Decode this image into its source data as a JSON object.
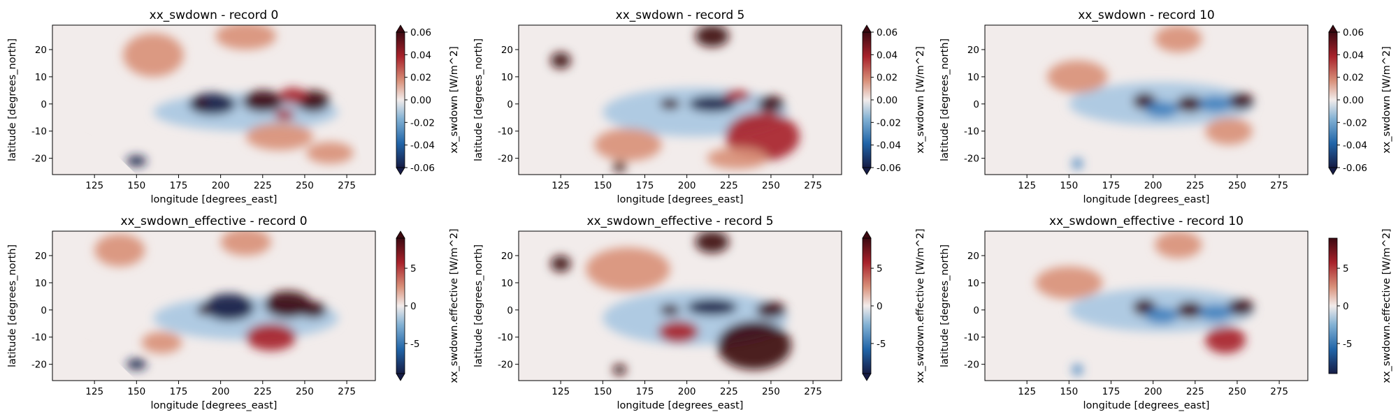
{
  "chart_data": [
    {
      "type": "heatmap",
      "title": "xx_swdown - record 0",
      "xlabel": "longitude [degrees_east]",
      "ylabel": "latitude [degrees_north]",
      "xlim": [
        100,
        292
      ],
      "ylim": [
        -26,
        29
      ],
      "xticks": [
        "125",
        "150",
        "175",
        "200",
        "225",
        "250",
        "275"
      ],
      "yticks": [
        "20",
        "10",
        "0",
        "-10",
        "-20"
      ],
      "colorbar": {
        "label": "xx_swdown [W/m^2]",
        "range": [
          -0.06,
          0.06
        ],
        "ticks": [
          "0.06",
          "0.04",
          "0.02",
          "0.00",
          "-0.02",
          "-0.04",
          "-0.06"
        ],
        "extend": "both"
      },
      "cmap": "balance (blue-white-red)"
    },
    {
      "type": "heatmap",
      "title": "xx_swdown - record 5",
      "xlabel": "longitude [degrees_east]",
      "ylabel": "latitude [degrees_north]",
      "xlim": [
        100,
        292
      ],
      "ylim": [
        -26,
        29
      ],
      "xticks": [
        "125",
        "150",
        "175",
        "200",
        "225",
        "250",
        "275"
      ],
      "yticks": [
        "20",
        "10",
        "0",
        "-10",
        "-20"
      ],
      "colorbar": {
        "label": "xx_swdown [W/m^2]",
        "range": [
          -0.06,
          0.06
        ],
        "ticks": [
          "0.06",
          "0.04",
          "0.02",
          "0.00",
          "-0.02",
          "-0.04",
          "-0.06"
        ],
        "extend": "both"
      },
      "cmap": "balance (blue-white-red)"
    },
    {
      "type": "heatmap",
      "title": "xx_swdown - record 10",
      "xlabel": "longitude [degrees_east]",
      "ylabel": "latitude [degrees_north]",
      "xlim": [
        100,
        292
      ],
      "ylim": [
        -26,
        29
      ],
      "xticks": [
        "125",
        "150",
        "175",
        "200",
        "225",
        "250",
        "275"
      ],
      "yticks": [
        "20",
        "10",
        "0",
        "-10",
        "-20"
      ],
      "colorbar": {
        "label": "xx_swdown [W/m^2]",
        "range": [
          -0.06,
          0.06
        ],
        "ticks": [
          "0.06",
          "0.04",
          "0.02",
          "0.00",
          "-0.02",
          "-0.04",
          "-0.06"
        ],
        "extend": "both"
      },
      "cmap": "balance (blue-white-red)"
    },
    {
      "type": "heatmap",
      "title": "xx_swdown_effective - record 0",
      "xlabel": "longitude [degrees_east]",
      "ylabel": "latitude [degrees_north]",
      "xlim": [
        100,
        292
      ],
      "ylim": [
        -26,
        29
      ],
      "xticks": [
        "125",
        "150",
        "175",
        "200",
        "225",
        "250",
        "275"
      ],
      "yticks": [
        "20",
        "10",
        "0",
        "-10",
        "-20"
      ],
      "colorbar": {
        "label": "xx_swdown.effective [W/m^2]",
        "range": [
          -9,
          9
        ],
        "ticks": [
          "5",
          "0",
          "-5"
        ],
        "extend": "both"
      },
      "cmap": "balance (blue-white-red)"
    },
    {
      "type": "heatmap",
      "title": "xx_swdown_effective - record 5",
      "xlabel": "longitude [degrees_east]",
      "ylabel": "latitude [degrees_north]",
      "xlim": [
        100,
        292
      ],
      "ylim": [
        -26,
        29
      ],
      "xticks": [
        "125",
        "150",
        "175",
        "200",
        "225",
        "250",
        "275"
      ],
      "yticks": [
        "20",
        "10",
        "0",
        "-10",
        "-20"
      ],
      "colorbar": {
        "label": "xx_swdown.effective [W/m^2]",
        "range": [
          -9,
          9
        ],
        "ticks": [
          "5",
          "0",
          "-5"
        ],
        "extend": "both"
      },
      "cmap": "balance (blue-white-red)"
    },
    {
      "type": "heatmap",
      "title": "xx_swdown_effective - record 10",
      "xlabel": "longitude [degrees_east]",
      "ylabel": "latitude [degrees_north]",
      "xlim": [
        100,
        292
      ],
      "ylim": [
        -26,
        29
      ],
      "xticks": [
        "125",
        "150",
        "175",
        "200",
        "225",
        "250",
        "275"
      ],
      "yticks": [
        "20",
        "10",
        "0",
        "-10",
        "-20"
      ],
      "colorbar": {
        "label": "xx_swdown.effective [W/m^2]",
        "range": [
          -9,
          9
        ],
        "ticks": [
          "5",
          "0",
          "-5"
        ],
        "extend": "neither"
      },
      "cmap": "balance (blue-white-red)"
    }
  ]
}
